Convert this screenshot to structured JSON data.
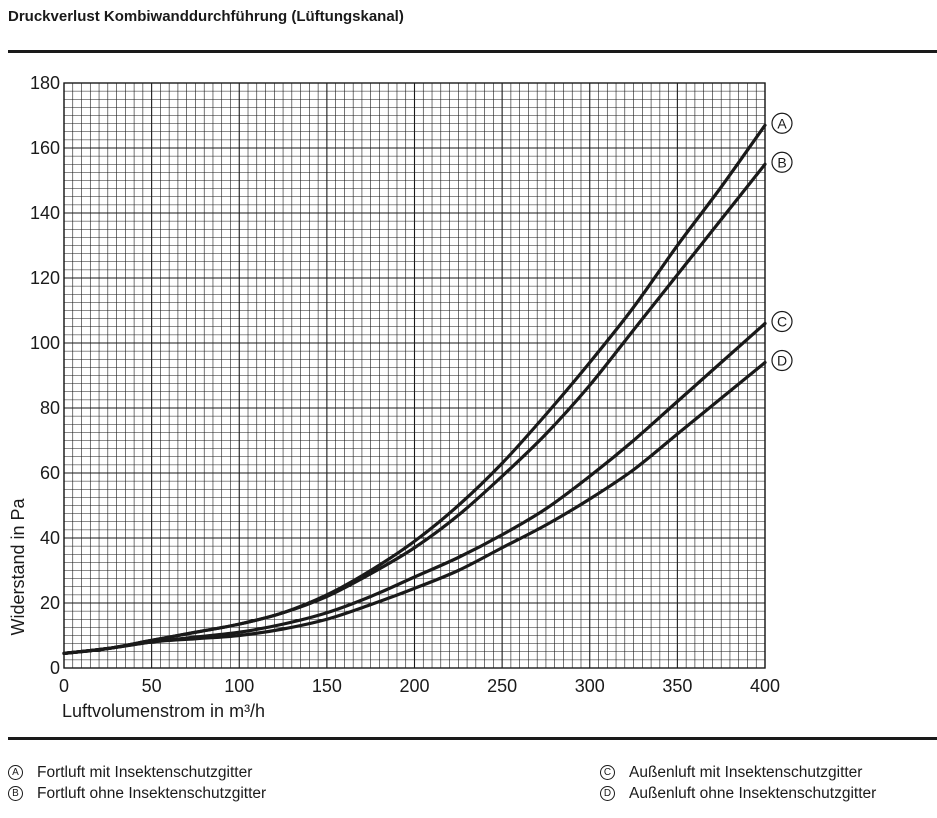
{
  "title": "Druckverlust Kombiwanddurchführung (Lüftungskanal)",
  "chart_data": {
    "type": "line",
    "xlabel": "Luftvolumenstrom in m³/h",
    "ylabel": "Widerstand in Pa",
    "xlim": [
      0,
      400
    ],
    "ylim": [
      0,
      180
    ],
    "x_ticks": [
      0,
      50,
      100,
      150,
      200,
      250,
      300,
      350,
      400
    ],
    "y_ticks": [
      0,
      20,
      40,
      60,
      80,
      100,
      120,
      140,
      160,
      180
    ],
    "grid": true,
    "x": [
      0,
      25,
      50,
      75,
      100,
      125,
      150,
      175,
      200,
      225,
      250,
      275,
      300,
      325,
      350,
      375,
      400
    ],
    "series": [
      {
        "name": "A",
        "label": "Fortluft mit Insektenschutzgitter",
        "values": [
          4.5,
          6,
          8.5,
          11,
          13.5,
          17,
          22.5,
          30,
          39,
          50,
          63,
          78,
          94,
          111,
          130,
          148,
          167
        ]
      },
      {
        "name": "B",
        "label": "Fortluft ohne Insektenschutzgitter",
        "values": [
          4.5,
          6,
          8.5,
          11,
          13.5,
          17,
          22,
          29,
          37,
          47,
          59,
          72,
          87,
          104,
          121,
          138,
          155
        ]
      },
      {
        "name": "C",
        "label": "Außenluft mit Insektenschutzgitter",
        "values": [
          4.5,
          6,
          8,
          9.5,
          11,
          13.5,
          17,
          22,
          28,
          34,
          41,
          49,
          59,
          70,
          82,
          94,
          106
        ]
      },
      {
        "name": "D",
        "label": "Außenluft ohne Insektenschutzgitter",
        "values": [
          4.5,
          6,
          8,
          9,
          10,
          12,
          15,
          19.5,
          24.5,
          30,
          37,
          44,
          52,
          61,
          72,
          83,
          94
        ]
      }
    ]
  },
  "legend": [
    {
      "badge": "A",
      "text": "Fortluft mit Insektenschutzgitter"
    },
    {
      "badge": "B",
      "text": "Fortluft ohne Insektenschutzgitter"
    },
    {
      "badge": "C",
      "text": "Außenluft mit Insektenschutzgitter"
    },
    {
      "badge": "D",
      "text": "Außenluft ohne Insektenschutzgitter"
    }
  ]
}
